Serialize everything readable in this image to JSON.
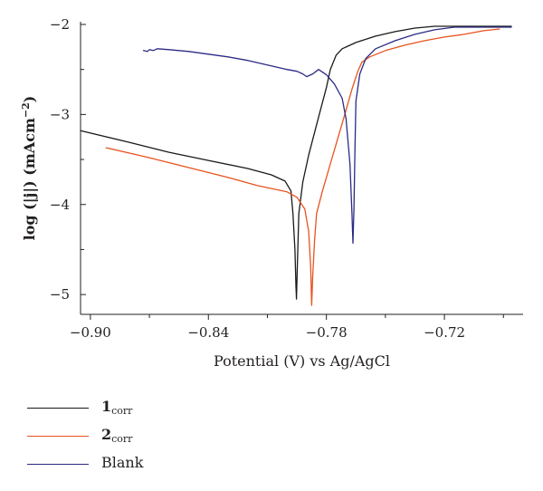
{
  "chart_data": {
    "type": "line",
    "xlabel": "Potential (V) vs Ag/AgCl",
    "ylabel_parts": {
      "main": "log (|j|) (mAcm",
      "sup": "−2",
      "close": ")"
    },
    "xlim": [
      -0.905,
      -0.68
    ],
    "ylim": [
      -5.22,
      -1.97
    ],
    "x_ticks": [
      -0.9,
      -0.84,
      -0.78,
      -0.72
    ],
    "x_tick_labels": [
      "−0.90",
      "−0.84",
      "−0.78",
      "−0.72"
    ],
    "x_minor_ticks": [
      -0.87,
      -0.81,
      -0.75,
      -0.69
    ],
    "y_ticks": [
      -2,
      -3,
      -4,
      -5
    ],
    "y_tick_labels": [
      "−2",
      "−3",
      "−4",
      "−5"
    ],
    "y_minor_ticks": [
      -2.5,
      -3.5,
      -4.5
    ],
    "legend_position": "below",
    "series": [
      {
        "name": "1",
        "subscript": "corr",
        "bold": true,
        "color": "#1a1a1a",
        "points": [
          [
            -0.905,
            -3.18
          ],
          [
            -0.88,
            -3.31
          ],
          [
            -0.86,
            -3.42
          ],
          [
            -0.84,
            -3.51
          ],
          [
            -0.82,
            -3.6
          ],
          [
            -0.808,
            -3.67
          ],
          [
            -0.801,
            -3.74
          ],
          [
            -0.798,
            -3.85
          ],
          [
            -0.797,
            -4.1
          ],
          [
            -0.796,
            -4.5
          ],
          [
            -0.7955,
            -4.9
          ],
          [
            -0.7952,
            -5.05
          ],
          [
            -0.7948,
            -4.7
          ],
          [
            -0.794,
            -4.1
          ],
          [
            -0.792,
            -3.75
          ],
          [
            -0.789,
            -3.45
          ],
          [
            -0.786,
            -3.2
          ],
          [
            -0.783,
            -2.95
          ],
          [
            -0.78,
            -2.7
          ],
          [
            -0.778,
            -2.5
          ],
          [
            -0.775,
            -2.34
          ],
          [
            -0.772,
            -2.27
          ],
          [
            -0.765,
            -2.2
          ],
          [
            -0.755,
            -2.13
          ],
          [
            -0.745,
            -2.08
          ],
          [
            -0.735,
            -2.04
          ],
          [
            -0.725,
            -2.02
          ],
          [
            -0.7,
            -2.02
          ],
          [
            -0.686,
            -2.02
          ]
        ]
      },
      {
        "name": "2",
        "subscript": "corr",
        "bold": true,
        "color": "#e8531f",
        "points": [
          [
            -0.892,
            -3.37
          ],
          [
            -0.87,
            -3.48
          ],
          [
            -0.85,
            -3.59
          ],
          [
            -0.83,
            -3.7
          ],
          [
            -0.815,
            -3.79
          ],
          [
            -0.8,
            -3.86
          ],
          [
            -0.795,
            -3.92
          ],
          [
            -0.791,
            -4.05
          ],
          [
            -0.789,
            -4.3
          ],
          [
            -0.788,
            -4.7
          ],
          [
            -0.7875,
            -5.12
          ],
          [
            -0.787,
            -4.8
          ],
          [
            -0.786,
            -4.4
          ],
          [
            -0.785,
            -4.1
          ],
          [
            -0.782,
            -3.85
          ],
          [
            -0.778,
            -3.55
          ],
          [
            -0.774,
            -3.25
          ],
          [
            -0.77,
            -2.95
          ],
          [
            -0.767,
            -2.72
          ],
          [
            -0.764,
            -2.52
          ],
          [
            -0.762,
            -2.42
          ],
          [
            -0.758,
            -2.36
          ],
          [
            -0.75,
            -2.29
          ],
          [
            -0.74,
            -2.23
          ],
          [
            -0.73,
            -2.18
          ],
          [
            -0.72,
            -2.14
          ],
          [
            -0.71,
            -2.11
          ],
          [
            -0.7,
            -2.07
          ],
          [
            -0.692,
            -2.05
          ]
        ]
      },
      {
        "name": "Blank",
        "subscript": "",
        "bold": false,
        "color": "#2b2a85",
        "points": [
          [
            -0.873,
            -2.29
          ],
          [
            -0.871,
            -2.3
          ],
          [
            -0.87,
            -2.28
          ],
          [
            -0.868,
            -2.29
          ],
          [
            -0.866,
            -2.27
          ],
          [
            -0.86,
            -2.28
          ],
          [
            -0.85,
            -2.3
          ],
          [
            -0.84,
            -2.33
          ],
          [
            -0.83,
            -2.36
          ],
          [
            -0.82,
            -2.4
          ],
          [
            -0.81,
            -2.45
          ],
          [
            -0.8,
            -2.5
          ],
          [
            -0.795,
            -2.52
          ],
          [
            -0.792,
            -2.55
          ],
          [
            -0.79,
            -2.58
          ],
          [
            -0.787,
            -2.55
          ],
          [
            -0.784,
            -2.5
          ],
          [
            -0.78,
            -2.56
          ],
          [
            -0.776,
            -2.66
          ],
          [
            -0.772,
            -2.82
          ],
          [
            -0.77,
            -3.05
          ],
          [
            -0.768,
            -3.55
          ],
          [
            -0.767,
            -4.1
          ],
          [
            -0.7665,
            -4.43
          ],
          [
            -0.766,
            -4.05
          ],
          [
            -0.7655,
            -3.4
          ],
          [
            -0.765,
            -2.85
          ],
          [
            -0.763,
            -2.55
          ],
          [
            -0.76,
            -2.38
          ],
          [
            -0.755,
            -2.27
          ],
          [
            -0.745,
            -2.18
          ],
          [
            -0.735,
            -2.11
          ],
          [
            -0.725,
            -2.06
          ],
          [
            -0.715,
            -2.03
          ],
          [
            -0.7,
            -2.03
          ],
          [
            -0.686,
            -2.03
          ]
        ]
      }
    ]
  }
}
